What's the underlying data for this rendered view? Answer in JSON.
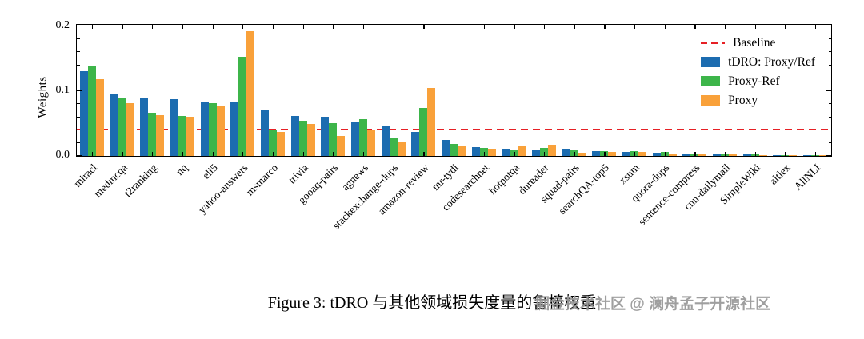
{
  "figure": {
    "caption": "Figure 3:   tDRO 与其他领域损失度量的鲁棒权重",
    "watermark": "掘金技术社区 @ 澜舟孟子开源社区"
  },
  "chart_data": {
    "type": "bar",
    "title": "",
    "xlabel": "",
    "ylabel": "Weights",
    "ylim": [
      0,
      0.2
    ],
    "yticks": [
      0.0,
      0.1,
      0.2
    ],
    "ytick_labels": [
      "0.0",
      "0.1",
      "0.2"
    ],
    "grid": false,
    "legend_position": "upper right",
    "baseline": {
      "label": "Baseline",
      "value": 0.04,
      "color": "#e62025",
      "style": "dashed"
    },
    "categories": [
      "miracl",
      "medmcqa",
      "t2ranking",
      "nq",
      "eli5",
      "yahoo-answers",
      "msmarco",
      "trivia",
      "gooaq-pairs",
      "agnews",
      "stackexchange-dups",
      "amazon-review",
      "mr-tydi",
      "codesearchnet",
      "hotpotqa",
      "dureader",
      "squad-pairs",
      "searchQA-top5",
      "xsum",
      "quora-dups",
      "sentence-compress",
      "cnn-dailymail",
      "SimpleWiki",
      "altlex",
      "AllNLI"
    ],
    "series": [
      {
        "name": "tDRO: Proxy/Ref",
        "color": "#1c6cb0",
        "values": [
          0.13,
          0.095,
          0.088,
          0.087,
          0.084,
          0.084,
          0.07,
          0.062,
          0.06,
          0.052,
          0.046,
          0.037,
          0.024,
          0.013,
          0.011,
          0.009,
          0.011,
          0.007,
          0.006,
          0.005,
          0.003,
          0.002,
          0.002,
          0.001,
          0.001
        ]
      },
      {
        "name": "Proxy-Ref",
        "color": "#3db54a",
        "values": [
          0.137,
          0.089,
          0.066,
          0.062,
          0.081,
          0.152,
          0.04,
          0.054,
          0.05,
          0.056,
          0.027,
          0.074,
          0.019,
          0.012,
          0.01,
          0.012,
          0.009,
          0.008,
          0.007,
          0.006,
          0.003,
          0.002,
          0.002,
          0.001,
          0.001
        ]
      },
      {
        "name": "Proxy",
        "color": "#f9a13a",
        "values": [
          0.118,
          0.081,
          0.063,
          0.06,
          0.078,
          0.192,
          0.037,
          0.049,
          0.031,
          0.041,
          0.022,
          0.105,
          0.015,
          0.011,
          0.015,
          0.017,
          0.005,
          0.006,
          0.006,
          0.004,
          0.002,
          0.002,
          0.001,
          0.001,
          0.001
        ]
      }
    ]
  }
}
